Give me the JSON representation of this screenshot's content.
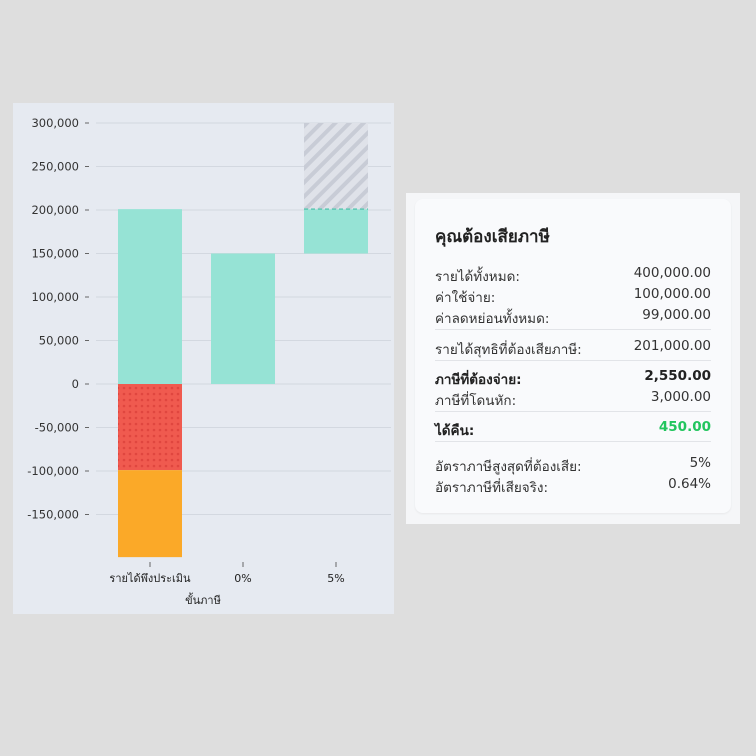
{
  "chart_data": {
    "type": "waterfall-bar",
    "ylim": [
      -200000,
      300000
    ],
    "y_ticks": [
      {
        "value": 300000,
        "label": "300,000"
      },
      {
        "value": 250000,
        "label": "250,000"
      },
      {
        "value": 200000,
        "label": "200,000"
      },
      {
        "value": 150000,
        "label": "150,000"
      },
      {
        "value": 100000,
        "label": "100,000"
      },
      {
        "value": 50000,
        "label": "50,000"
      },
      {
        "value": 0,
        "label": "0"
      },
      {
        "value": -50000,
        "label": "-50,000"
      },
      {
        "value": -100000,
        "label": "-100,000"
      },
      {
        "value": -150000,
        "label": "-150,000"
      }
    ],
    "categories": [
      "รายได้พึงประเมิน",
      "0%",
      "5%"
    ],
    "xlabel": "ขั้นภาษี",
    "grid": true,
    "bars": [
      {
        "category": "รายได้พึงประเมิน",
        "from": 0,
        "to": 201000,
        "color": "#96e3d5",
        "pattern": "solid"
      },
      {
        "category": "รายได้พึงประเมิน",
        "from": -99000,
        "to": 0,
        "color": "#f05a4f",
        "pattern": "dots"
      },
      {
        "category": "รายได้พึงประเมิน",
        "from": -199000,
        "to": -99000,
        "color": "#fba928",
        "pattern": "solid"
      },
      {
        "category": "0%",
        "from": 0,
        "to": 150000,
        "color": "#96e3d5",
        "pattern": "solid"
      },
      {
        "category": "5%",
        "from": 150000,
        "to": 201000,
        "color": "#96e3d5",
        "pattern": "solid"
      },
      {
        "category": "5%",
        "from": 201000,
        "to": 300000,
        "color": "#c9cdd6",
        "pattern": "hatch"
      }
    ]
  },
  "summary": {
    "title": "คุณต้องเสียภาษี",
    "rows": {
      "total_income": {
        "label": "รายได้ทั้งหมด:",
        "value": "400,000.00"
      },
      "expenses": {
        "label": "ค่าใช้จ่าย:",
        "value": "100,000.00"
      },
      "deductions": {
        "label": "ค่าลดหย่อนทั้งหมด:",
        "value": "99,000.00"
      },
      "net_taxable": {
        "label": "รายได้สุทธิที่ต้องเสียภาษี:",
        "value": "201,000.00"
      },
      "tax_due": {
        "label": "ภาษีที่ต้องจ่าย:",
        "value": "2,550.00"
      },
      "tax_withheld": {
        "label": "ภาษีที่โดนหัก:",
        "value": "3,000.00"
      },
      "refund": {
        "label": "ได้คืน:",
        "value": "450.00"
      },
      "top_rate": {
        "label": "อัตราภาษีสูงสุดที่ต้องเสีย:",
        "value": "5%"
      },
      "effective_rate": {
        "label": "อัตราภาษีที่เสียจริง:",
        "value": "0.64%"
      }
    },
    "refund_color": "#22c55e"
  }
}
